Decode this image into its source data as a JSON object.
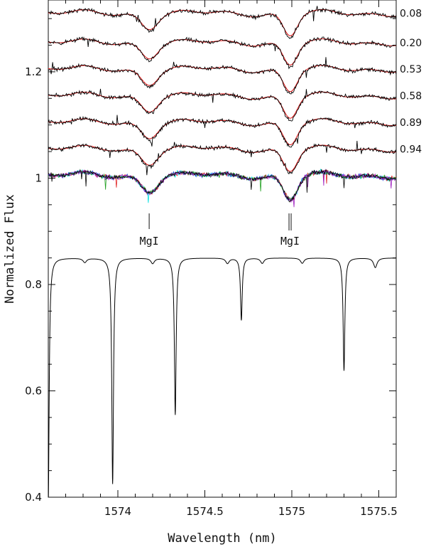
{
  "chart_data": {
    "type": "line",
    "xlabel": "Wavelength (nm)",
    "ylabel": "Normalized Flux",
    "xlim": [
      1573.6,
      1775.6
    ],
    "ylim": [
      0.4,
      1.335
    ],
    "x_ticks": [
      {
        "value": 1574.0,
        "label": "1574"
      },
      {
        "value": 1574.5,
        "label": "1574.5"
      },
      {
        "value": 1575.0,
        "label": "1575"
      },
      {
        "value": 1575.5,
        "label": "1575.5"
      }
    ],
    "y_ticks": [
      {
        "value": 0.4,
        "label": "0.4"
      },
      {
        "value": 0.6,
        "label": "0.6"
      },
      {
        "value": 0.8,
        "label": "0.8"
      },
      {
        "value": 1.0,
        "label": "1"
      },
      {
        "value": 1.2,
        "label": "1.2"
      }
    ],
    "observed_spectra": [
      {
        "phase": "0.08",
        "offset": 1.31,
        "color": "#000000",
        "model_color": "#e02020"
      },
      {
        "phase": "0.20",
        "offset": 1.255,
        "color": "#000000",
        "model_color": "#e02020"
      },
      {
        "phase": "0.53",
        "offset": 1.205,
        "color": "#000000",
        "model_color": "#e02020"
      },
      {
        "phase": "0.58",
        "offset": 1.155,
        "color": "#000000",
        "model_color": "#e02020"
      },
      {
        "phase": "0.89",
        "offset": 1.105,
        "color": "#000000",
        "model_color": "#e02020"
      },
      {
        "phase": "0.94",
        "offset": 1.055,
        "color": "#000000",
        "model_color": "#e02020"
      }
    ],
    "overplotted_spectra": {
      "offset": 1.005,
      "colors": [
        "#00e0e0",
        "#e02020",
        "#2040e0",
        "#20a020",
        "#a020c0",
        "#000000"
      ]
    },
    "mg_lines": [
      {
        "label": "MgI",
        "wavelength": 1574.18
      },
      {
        "label": "MgI",
        "wavelength": 1574.99
      }
    ],
    "absorption_features": [
      {
        "center": 1574.18,
        "depth": 0.028,
        "width": 0.045
      },
      {
        "center": 1574.99,
        "depth": 0.045,
        "width": 0.04
      }
    ],
    "synthetic_spectrum": {
      "continuum": 0.85,
      "color": "#000000",
      "lines": [
        {
          "center": 1573.6,
          "depth": 0.46,
          "width": 0.006
        },
        {
          "center": 1573.81,
          "depth": 0.008,
          "width": 0.012
        },
        {
          "center": 1573.97,
          "depth": 0.425,
          "width": 0.006
        },
        {
          "center": 1574.2,
          "depth": 0.01,
          "width": 0.012
        },
        {
          "center": 1574.33,
          "depth": 0.295,
          "width": 0.006
        },
        {
          "center": 1574.63,
          "depth": 0.01,
          "width": 0.012
        },
        {
          "center": 1574.71,
          "depth": 0.117,
          "width": 0.006
        },
        {
          "center": 1574.83,
          "depth": 0.01,
          "width": 0.012
        },
        {
          "center": 1575.06,
          "depth": 0.01,
          "width": 0.012
        },
        {
          "center": 1575.3,
          "depth": 0.212,
          "width": 0.006
        },
        {
          "center": 1575.48,
          "depth": 0.018,
          "width": 0.012
        }
      ]
    }
  }
}
